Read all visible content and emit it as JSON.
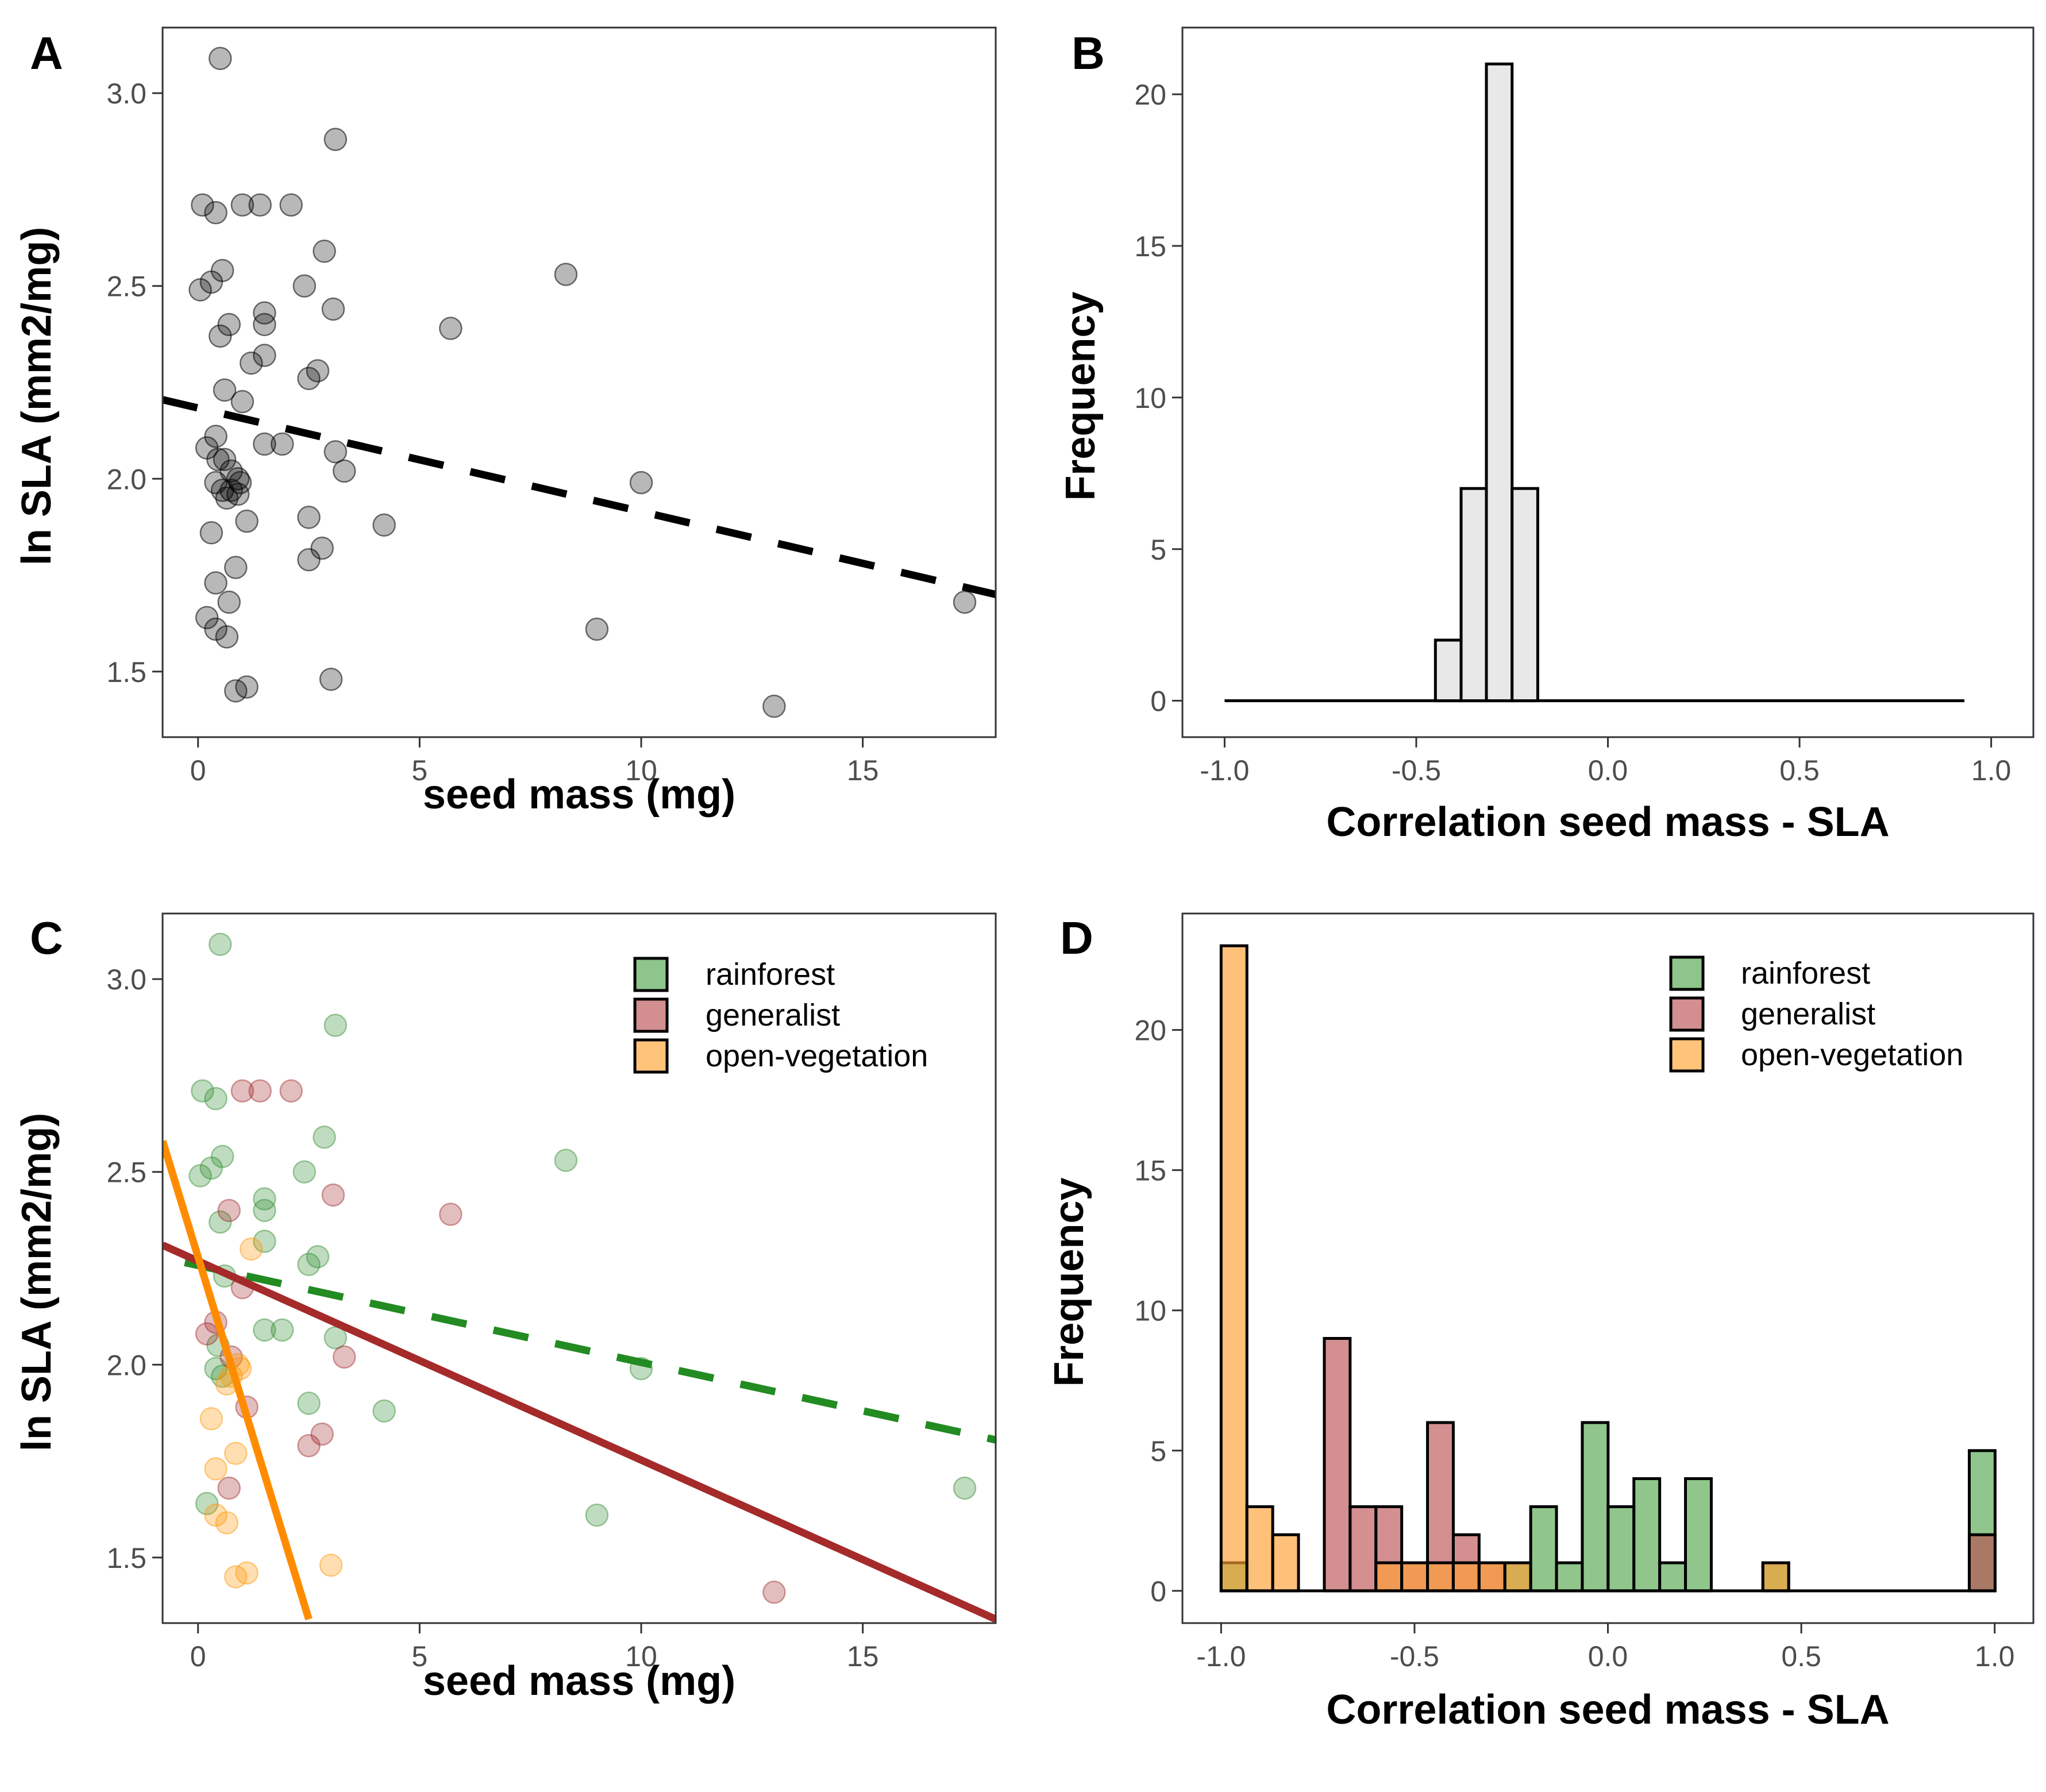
{
  "chart_data": [
    {
      "panel": "A",
      "type": "scatter",
      "title": "",
      "xlabel": "seed mass (mg)",
      "ylabel": "ln SLA (mm2/mg)",
      "xlim": [
        -0.8,
        18
      ],
      "ylim": [
        1.33,
        3.17
      ],
      "xticks": [
        0,
        5,
        10,
        15
      ],
      "yticks": [
        1.5,
        2.0,
        2.5,
        3.0
      ],
      "xtick_labels": [
        "0",
        "5",
        "10",
        "15"
      ],
      "ytick_labels": [
        "1.5",
        "2.0",
        "2.5",
        "3.0"
      ],
      "grid": false,
      "points": [
        [
          0.1,
          2.71
        ],
        [
          0.3,
          2.51
        ],
        [
          0.4,
          2.69
        ],
        [
          0.55,
          2.54
        ],
        [
          0.05,
          2.49
        ],
        [
          0.5,
          3.09
        ],
        [
          1.0,
          2.71
        ],
        [
          1.4,
          2.71
        ],
        [
          2.1,
          2.71
        ],
        [
          3.1,
          2.88
        ],
        [
          2.85,
          2.59
        ],
        [
          2.4,
          2.5
        ],
        [
          3.05,
          2.44
        ],
        [
          1.5,
          2.43
        ],
        [
          1.5,
          2.4
        ],
        [
          0.7,
          2.4
        ],
        [
          0.5,
          2.37
        ],
        [
          1.5,
          2.32
        ],
        [
          1.2,
          2.3
        ],
        [
          2.7,
          2.28
        ],
        [
          2.5,
          2.26
        ],
        [
          0.6,
          2.23
        ],
        [
          1.0,
          2.2
        ],
        [
          0.4,
          2.11
        ],
        [
          1.5,
          2.09
        ],
        [
          1.9,
          2.09
        ],
        [
          0.2,
          2.08
        ],
        [
          3.1,
          2.07
        ],
        [
          0.45,
          2.05
        ],
        [
          0.6,
          2.05
        ],
        [
          0.75,
          2.02
        ],
        [
          3.3,
          2.02
        ],
        [
          0.9,
          2.0
        ],
        [
          0.4,
          1.99
        ],
        [
          0.95,
          1.99
        ],
        [
          0.55,
          1.97
        ],
        [
          0.75,
          1.97
        ],
        [
          0.65,
          1.95
        ],
        [
          0.9,
          1.96
        ],
        [
          10.0,
          1.99
        ],
        [
          2.5,
          1.9
        ],
        [
          1.1,
          1.89
        ],
        [
          4.2,
          1.88
        ],
        [
          0.3,
          1.86
        ],
        [
          2.8,
          1.82
        ],
        [
          2.5,
          1.79
        ],
        [
          0.85,
          1.77
        ],
        [
          0.4,
          1.73
        ],
        [
          0.7,
          1.68
        ],
        [
          17.3,
          1.68
        ],
        [
          0.2,
          1.64
        ],
        [
          0.4,
          1.61
        ],
        [
          0.65,
          1.59
        ],
        [
          9.0,
          1.61
        ],
        [
          3.0,
          1.48
        ],
        [
          0.85,
          1.45
        ],
        [
          1.1,
          1.46
        ],
        [
          13.0,
          1.41
        ],
        [
          5.7,
          2.39
        ],
        [
          8.3,
          2.53
        ]
      ],
      "trend_lines": [
        {
          "x": [
            -0.8,
            18
          ],
          "y": [
            2.205,
            1.7
          ],
          "style": "dashed",
          "color": "#000000"
        }
      ]
    },
    {
      "panel": "B",
      "type": "bar",
      "title": "",
      "xlabel": "Correlation seed mass - SLA",
      "ylabel": "Frequency",
      "xlim": [
        -1.11,
        1.11
      ],
      "ylim": [
        -1.2,
        22.2
      ],
      "xticks": [
        -1.0,
        -0.5,
        0.0,
        0.5,
        1.0
      ],
      "yticks": [
        0,
        5,
        10,
        15,
        20
      ],
      "xtick_labels": [
        "-1.0",
        "-0.5",
        "0.0",
        "0.5",
        "1.0"
      ],
      "ytick_labels": [
        "0",
        "5",
        "10",
        "15",
        "20"
      ],
      "grid": false,
      "bin_width": 0.0667,
      "baseline_range": [
        -1.0,
        0.93
      ],
      "bins": [
        {
          "x0": -0.45,
          "x1": -0.383,
          "count": 2
        },
        {
          "x0": -0.383,
          "x1": -0.317,
          "count": 7
        },
        {
          "x0": -0.317,
          "x1": -0.25,
          "count": 21
        },
        {
          "x0": -0.25,
          "x1": -0.183,
          "count": 7
        }
      ]
    },
    {
      "panel": "C",
      "type": "scatter",
      "title": "",
      "xlabel": "seed mass (mg)",
      "ylabel": "ln SLA (mm2/mg)",
      "xlim": [
        -0.8,
        18
      ],
      "ylim": [
        1.33,
        3.17
      ],
      "xticks": [
        0,
        5,
        10,
        15
      ],
      "yticks": [
        1.5,
        2.0,
        2.5,
        3.0
      ],
      "xtick_labels": [
        "0",
        "5",
        "10",
        "15"
      ],
      "ytick_labels": [
        "1.5",
        "2.0",
        "2.5",
        "3.0"
      ],
      "grid": false,
      "legend_position": "top-right",
      "series": [
        {
          "name": "rainforest",
          "color": "#2e8b2e",
          "points": [
            [
              0.1,
              2.71
            ],
            [
              0.3,
              2.51
            ],
            [
              0.4,
              2.69
            ],
            [
              0.55,
              2.54
            ],
            [
              0.05,
              2.49
            ],
            [
              0.5,
              3.09
            ],
            [
              3.1,
              2.88
            ],
            [
              2.85,
              2.59
            ],
            [
              2.4,
              2.5
            ],
            [
              1.5,
              2.43
            ],
            [
              1.5,
              2.4
            ],
            [
              0.5,
              2.37
            ],
            [
              1.5,
              2.32
            ],
            [
              2.7,
              2.28
            ],
            [
              2.5,
              2.26
            ],
            [
              0.6,
              2.23
            ],
            [
              1.5,
              2.09
            ],
            [
              1.9,
              2.09
            ],
            [
              3.1,
              2.07
            ],
            [
              0.45,
              2.05
            ],
            [
              0.4,
              1.99
            ],
            [
              0.55,
              1.97
            ],
            [
              10.0,
              1.99
            ],
            [
              2.5,
              1.9
            ],
            [
              4.2,
              1.88
            ],
            [
              17.3,
              1.68
            ],
            [
              0.2,
              1.64
            ],
            [
              9.0,
              1.61
            ],
            [
              8.3,
              2.53
            ]
          ],
          "line": {
            "x": [
              -0.3,
              18
            ],
            "y": [
              2.265,
              1.805
            ],
            "style": "dashed",
            "color": "#228b22"
          }
        },
        {
          "name": "generalist",
          "color": "#a0282a",
          "points": [
            [
              1.0,
              2.71
            ],
            [
              1.4,
              2.71
            ],
            [
              2.1,
              2.71
            ],
            [
              3.05,
              2.44
            ],
            [
              0.7,
              2.4
            ],
            [
              5.7,
              2.39
            ],
            [
              1.0,
              2.2
            ],
            [
              0.4,
              2.11
            ],
            [
              0.2,
              2.08
            ],
            [
              0.75,
              2.02
            ],
            [
              3.3,
              2.02
            ],
            [
              1.1,
              1.89
            ],
            [
              2.8,
              1.82
            ],
            [
              2.5,
              1.79
            ],
            [
              0.7,
              1.68
            ],
            [
              13.0,
              1.41
            ]
          ],
          "line": {
            "x": [
              -0.8,
              18
            ],
            "y": [
              2.31,
              1.34
            ],
            "style": "solid",
            "color": "#a52a2a"
          }
        },
        {
          "name": "open-vegetation",
          "color": "#ff9500",
          "points": [
            [
              1.2,
              2.3
            ],
            [
              0.9,
              2.0
            ],
            [
              0.75,
              1.97
            ],
            [
              0.65,
              1.95
            ],
            [
              0.95,
              1.99
            ],
            [
              0.3,
              1.86
            ],
            [
              0.85,
              1.77
            ],
            [
              0.4,
              1.73
            ],
            [
              0.4,
              1.61
            ],
            [
              0.65,
              1.59
            ],
            [
              3.0,
              1.48
            ],
            [
              0.85,
              1.45
            ],
            [
              1.1,
              1.46
            ]
          ],
          "line": {
            "x": [
              -0.8,
              2.5
            ],
            "y": [
              2.58,
              1.34
            ],
            "style": "solid",
            "color": "#ff8c00"
          }
        }
      ]
    },
    {
      "panel": "D",
      "type": "bar",
      "title": "",
      "xlabel": "Correlation seed mass - SLA",
      "ylabel": "Frequency",
      "xlim": [
        -1.1,
        1.1
      ],
      "ylim": [
        -1.15,
        24.15
      ],
      "xticks": [
        -1.0,
        -0.5,
        0.0,
        0.5,
        1.0
      ],
      "yticks": [
        0,
        5,
        10,
        15,
        20
      ],
      "xtick_labels": [
        "-1.0",
        "-0.5",
        "0.0",
        "0.5",
        "1.0"
      ],
      "ytick_labels": [
        "0",
        "5",
        "10",
        "15",
        "20"
      ],
      "grid": false,
      "legend_position": "top-right",
      "bin_width": 0.0667,
      "bin_start": -1.0,
      "series": [
        {
          "name": "rainforest",
          "color": "#55a84f",
          "counts": [
            1,
            0,
            0,
            0,
            0,
            0,
            0,
            0,
            0,
            0,
            0,
            1,
            3,
            1,
            6,
            3,
            4,
            1,
            4,
            0,
            0,
            1,
            0,
            0,
            0,
            0,
            0,
            0,
            0,
            5
          ]
        },
        {
          "name": "generalist",
          "color": "#c0595c",
          "counts": [
            0,
            0,
            0,
            0,
            9,
            3,
            3,
            1,
            6,
            2,
            1,
            0,
            0,
            0,
            0,
            0,
            0,
            0,
            0,
            0,
            0,
            0,
            0,
            0,
            0,
            0,
            0,
            0,
            0,
            2
          ]
        },
        {
          "name": "open-vegetation",
          "color": "#ffaa44",
          "counts": [
            23,
            3,
            2,
            0,
            0,
            0,
            1,
            1,
            1,
            1,
            1,
            1,
            0,
            0,
            0,
            0,
            0,
            0,
            0,
            0,
            0,
            1,
            0,
            0,
            0,
            0,
            0,
            0,
            0,
            0
          ]
        }
      ]
    }
  ]
}
